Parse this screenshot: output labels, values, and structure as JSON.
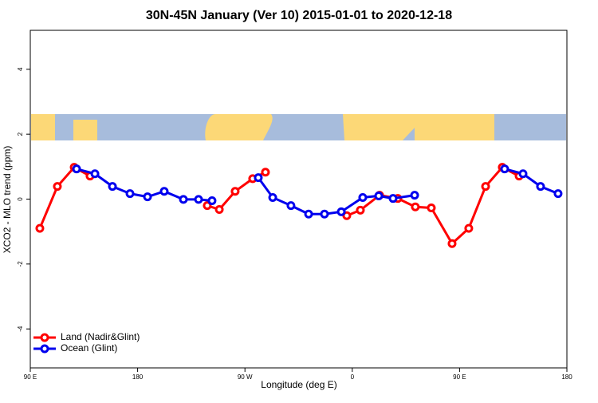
{
  "chart_data": {
    "type": "line",
    "title": "30N-45N January (Ver 10)   2015-01-01 to 2020-12-18",
    "x_label": "Longitude (deg E)",
    "y_label": "XCO2 - MLO trend (ppm)",
    "xlim": [
      90,
      540
    ],
    "xticks": [
      {
        "value": 90,
        "label": "90 E"
      },
      {
        "value": 180,
        "label": "180"
      },
      {
        "value": 270,
        "label": "90 W"
      },
      {
        "value": 360,
        "label": "0"
      },
      {
        "value": 450,
        "label": "90 E"
      },
      {
        "value": 540,
        "label": "180"
      }
    ],
    "ylim": [
      -5.2,
      5.2
    ],
    "yticks": [
      -4,
      -2,
      0,
      2,
      4
    ],
    "legend": "bottomleft",
    "series": [
      {
        "name": "Land (Nadir&Glint)",
        "color": "#ff0000",
        "x": [
          98,
          112.7,
          126.8,
          140.1,
          null,
          238.4,
          248.5,
          261.8,
          276.5,
          287.2,
          null,
          355.4,
          366.8,
          382.9,
          398.2,
          412.9,
          426.3,
          443.7,
          457.7,
          471.8,
          485.8,
          499.9
        ],
        "values": [
          -0.9,
          0.39,
          0.98,
          0.71,
          null,
          -0.2,
          -0.32,
          0.24,
          0.63,
          0.83,
          null,
          -0.51,
          -0.34,
          0.12,
          0.02,
          -0.24,
          -0.27,
          -1.37,
          -0.9,
          0.39,
          0.98,
          0.71
        ]
      },
      {
        "name": "Ocean (Glint)",
        "color": "#0000ee",
        "x": [
          128.8,
          144.2,
          158.9,
          173.6,
          188.3,
          202.3,
          218.4,
          231.1,
          242.4,
          null,
          281.2,
          293.3,
          308.6,
          323.4,
          336.7,
          350.8,
          368.8,
          382.2,
          394.2,
          412.3,
          null,
          487.8,
          503.2,
          517.9,
          532.6
        ],
        "values": [
          0.93,
          0.78,
          0.39,
          0.17,
          0.07,
          0.24,
          -0.01,
          -0.01,
          -0.05,
          null,
          0.66,
          0.05,
          -0.2,
          -0.46,
          -0.46,
          -0.39,
          0.05,
          0.1,
          0.02,
          0.12,
          null,
          0.93,
          0.78,
          0.39,
          0.17
        ]
      }
    ]
  }
}
